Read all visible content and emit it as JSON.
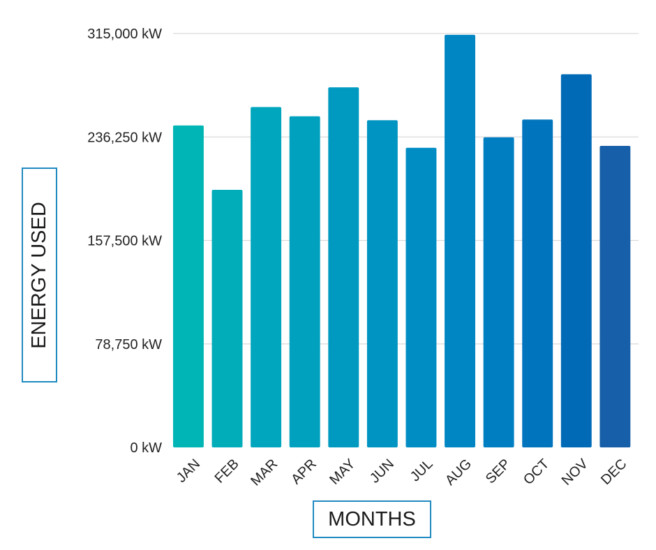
{
  "chart_data": {
    "type": "bar",
    "title": "",
    "xlabel": "MONTHS",
    "ylabel": "ENERGY USED",
    "ylim": [
      0,
      315000
    ],
    "yticks": [
      0,
      78750,
      157500,
      236250,
      315000
    ],
    "ytick_labels": [
      "0 kW",
      "78,750 kW",
      "157,500 kW",
      "236,250 kW",
      "315,000 kW"
    ],
    "categories": [
      "JAN",
      "FEB",
      "MAR",
      "APR",
      "MAY",
      "JUN",
      "JUL",
      "AUG",
      "SEP",
      "OCT",
      "NOV",
      "DEC"
    ],
    "values": [
      245000,
      196000,
      259000,
      252000,
      274000,
      249000,
      228000,
      314000,
      236000,
      249500,
      284000,
      229500
    ],
    "colors": [
      "#00b5b5",
      "#00adb9",
      "#00a6bd",
      "#00a0bf",
      "#009ac1",
      "#0094c2",
      "#008dc3",
      "#0086c3",
      "#007ec2",
      "#0075bd",
      "#006ab7",
      "#175fa8"
    ],
    "grid": true,
    "legend": "none"
  }
}
